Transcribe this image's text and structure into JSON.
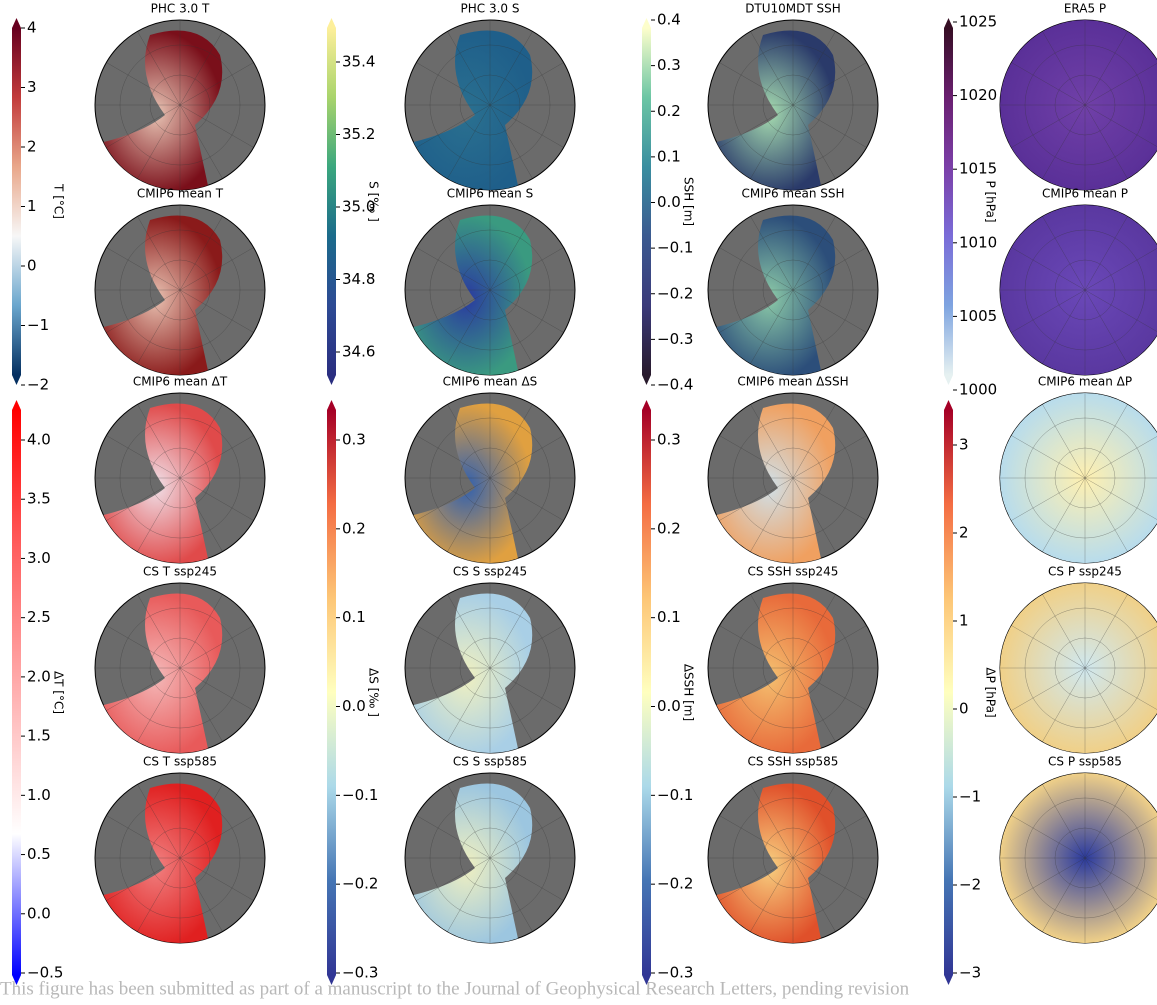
{
  "columns": [
    {
      "top_colorbar": {
        "label": "T [°C]",
        "ticks": [
          "4",
          "3",
          "2",
          "1",
          "0",
          "−1",
          "−2"
        ]
      },
      "top_panels": [
        "PHC 3.0 T",
        "CMIP6 mean T"
      ],
      "bottom_colorbar": {
        "label": "ΔT [°C]",
        "ticks": [
          "4.0",
          "3.5",
          "3.0",
          "2.5",
          "2.0",
          "1.5",
          "1.0",
          "0.5",
          "0.0",
          "−0.5"
        ]
      },
      "bottom_panels": [
        "CMIP6 mean ΔT",
        "CS T ssp245",
        "CS T ssp585"
      ]
    },
    {
      "top_colorbar": {
        "label": "S [‰ ]",
        "ticks": [
          "35.4",
          "35.2",
          "35.0",
          "34.8",
          "34.6"
        ]
      },
      "top_panels": [
        "PHC 3.0 S",
        "CMIP6 mean S"
      ],
      "bottom_colorbar": {
        "label": "ΔS [‰ ]",
        "ticks": [
          "0.3",
          "0.2",
          "0.1",
          "0.0",
          "−0.1",
          "−0.2",
          "−0.3"
        ]
      },
      "bottom_panels": [
        "CMIP6 mean ΔS",
        "CS S ssp245",
        "CS S ssp585"
      ]
    },
    {
      "top_colorbar": {
        "label": "SSH [m]",
        "ticks": [
          "0.4",
          "0.3",
          "0.2",
          "0.1",
          "0.0",
          "−0.1",
          "−0.2",
          "−0.3",
          "−0.4"
        ]
      },
      "top_panels": [
        "DTU10MDT SSH",
        "CMIP6 mean SSH"
      ],
      "bottom_colorbar": {
        "label": "ΔSSH [m]",
        "ticks": [
          "0.3",
          "0.2",
          "0.1",
          "0.0",
          "−0.1",
          "−0.2",
          "−0.3"
        ]
      },
      "bottom_panels": [
        "CMIP6 mean ΔSSH",
        "CS SSH ssp245",
        "CS SSH ssp585"
      ]
    },
    {
      "top_colorbar": {
        "label": "P [hPa]",
        "ticks": [
          "1025",
          "1020",
          "1015",
          "1010",
          "1005",
          "1000"
        ]
      },
      "top_panels": [
        "ERA5 P",
        "CMIP6 mean P"
      ],
      "bottom_colorbar": {
        "label": "ΔP [hPa]",
        "ticks": [
          "3",
          "2",
          "1",
          "0",
          "−1",
          "−2",
          "−3"
        ]
      },
      "bottom_panels": [
        "CMIP6 mean ΔP",
        "CS P ssp245",
        "CS P ssp585"
      ]
    }
  ],
  "footer": "This figure has been submitted as part of a manuscript to the Journal of Geophysical Research Letters, pending revision"
}
